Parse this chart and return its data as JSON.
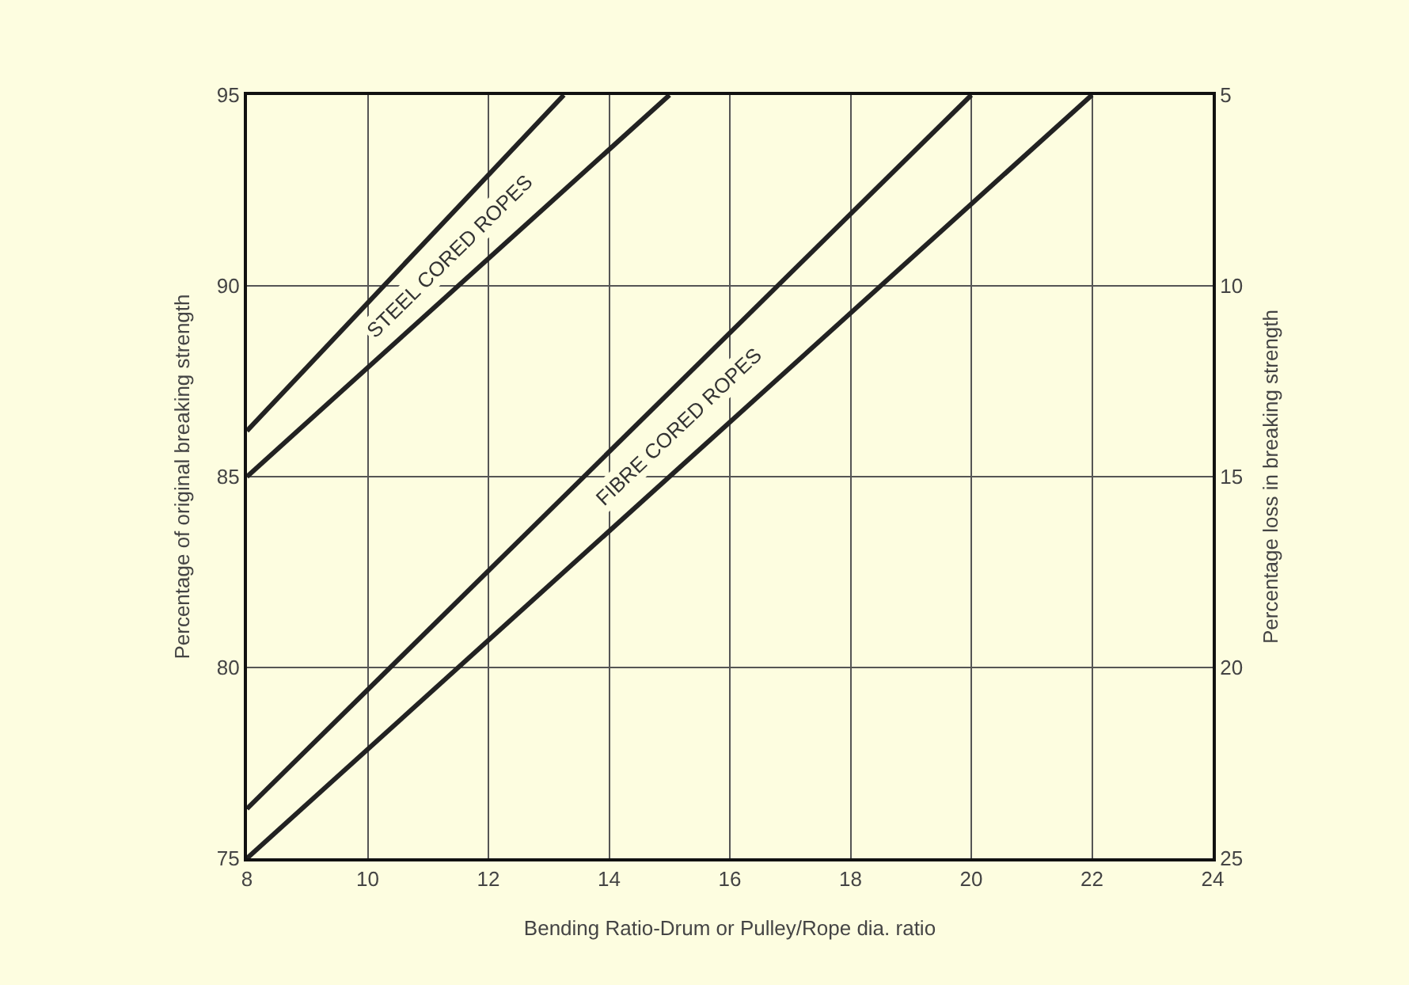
{
  "chart_data": {
    "type": "line",
    "xlabel": "Bending Ratio-Drum or Pulley/Rope dia. ratio",
    "ylabel": "Percentage of original breaking strength",
    "y2label": "Percentage loss in breaking strength",
    "series": [
      {
        "color": "#222222",
        "x": [
          8,
          13.25
        ],
        "values": [
          86.2,
          95
        ]
      },
      {
        "color": "#222222",
        "x": [
          8,
          15
        ],
        "values": [
          85,
          95
        ]
      },
      {
        "color": "#222222",
        "x": [
          8,
          20
        ],
        "values": [
          76.3,
          95
        ]
      },
      {
        "color": "#222222",
        "x": [
          8,
          22
        ],
        "values": [
          75,
          95
        ]
      }
    ],
    "annotations": [
      "STEEL CORED ROPES",
      "FIBRE CORED ROPES"
    ],
    "xlim": [
      8,
      24
    ],
    "xticks": [
      8,
      10,
      12,
      14,
      16,
      18,
      20,
      22,
      24
    ],
    "ylim": [
      75,
      95
    ],
    "yticks": [
      75,
      80,
      85,
      90,
      95
    ],
    "y2lim": [
      25,
      5
    ],
    "y2ticks": [
      5,
      10,
      15,
      20,
      25
    ],
    "grid": true,
    "marker": "none",
    "line_style": "solid"
  }
}
